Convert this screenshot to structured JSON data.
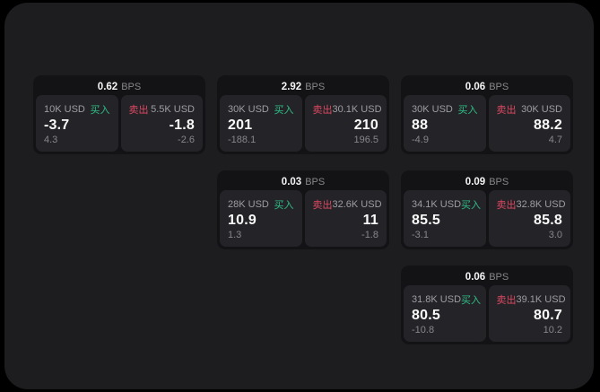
{
  "labels": {
    "bps_unit": "BPS",
    "buy": "买入",
    "sell": "卖出"
  },
  "colors": {
    "background": "#000000",
    "panel": "#1d1d1f",
    "card": "#131315",
    "cell": "#242428",
    "buy": "#2ebd85",
    "sell": "#dd4861"
  },
  "cards": [
    {
      "row": 1,
      "col": 1,
      "bps": "0.62",
      "buy": {
        "amount": "10K USD",
        "value": "-3.7",
        "delta": "4.3"
      },
      "sell": {
        "amount": "5.5K USD",
        "value": "-1.8",
        "delta": "-2.6"
      }
    },
    {
      "row": 1,
      "col": 2,
      "bps": "2.92",
      "buy": {
        "amount": "30K USD",
        "value": "201",
        "delta": "-188.1"
      },
      "sell": {
        "amount": "30.1K USD",
        "value": "210",
        "delta": "196.5"
      }
    },
    {
      "row": 1,
      "col": 3,
      "bps": "0.06",
      "buy": {
        "amount": "30K USD",
        "value": "88",
        "delta": "-4.9"
      },
      "sell": {
        "amount": "30K USD",
        "value": "88.2",
        "delta": "4.7"
      }
    },
    {
      "row": 2,
      "col": 2,
      "bps": "0.03",
      "buy": {
        "amount": "28K USD",
        "value": "10.9",
        "delta": "1.3"
      },
      "sell": {
        "amount": "32.6K USD",
        "value": "11",
        "delta": "-1.8"
      }
    },
    {
      "row": 2,
      "col": 3,
      "bps": "0.09",
      "buy": {
        "amount": "34.1K USD",
        "value": "85.5",
        "delta": "-3.1"
      },
      "sell": {
        "amount": "32.8K USD",
        "value": "85.8",
        "delta": "3.0"
      }
    },
    {
      "row": 3,
      "col": 3,
      "bps": "0.06",
      "buy": {
        "amount": "31.8K USD",
        "value": "80.5",
        "delta": "-10.8"
      },
      "sell": {
        "amount": "39.1K USD",
        "value": "80.7",
        "delta": "10.2"
      }
    }
  ]
}
